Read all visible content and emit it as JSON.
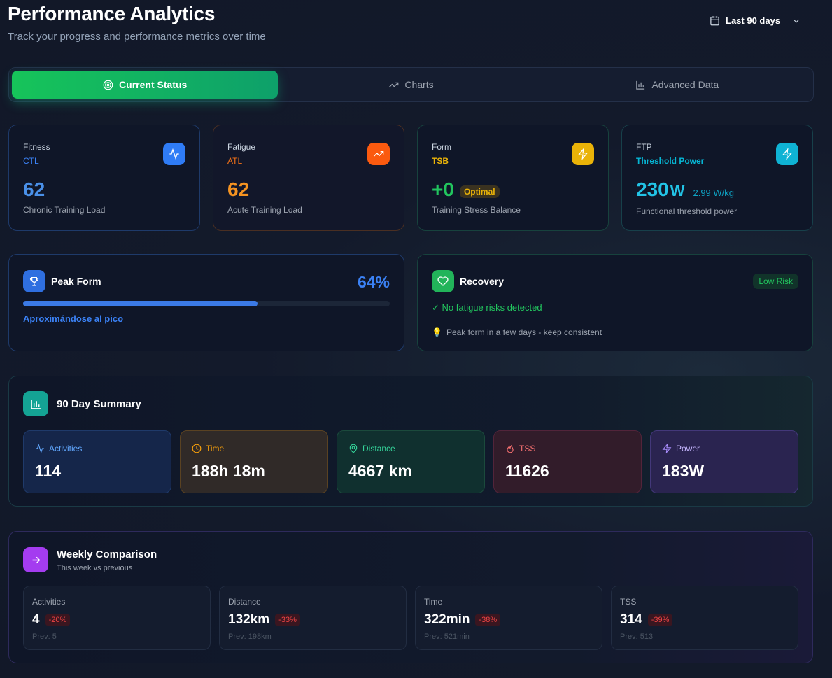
{
  "header": {
    "title": "Performance Analytics",
    "subtitle": "Track your progress and performance metrics over time",
    "date_range": "Last 90 days"
  },
  "tabs": [
    {
      "label": "Current Status",
      "active": true
    },
    {
      "label": "Charts",
      "active": false
    },
    {
      "label": "Advanced Data",
      "active": false
    }
  ],
  "metrics": [
    {
      "label": "Fitness",
      "sub": "CTL",
      "value": "62",
      "desc": "Chronic Training Load",
      "color": "#3b82f6",
      "icon": "activity-icon"
    },
    {
      "label": "Fatigue",
      "sub": "ATL",
      "value": "62",
      "desc": "Acute Training Load",
      "color": "#f97316",
      "icon": "trending-up-icon"
    },
    {
      "label": "Form",
      "sub": "TSB",
      "value": "+0",
      "badge": "Optimal",
      "desc": "Training Stress Balance",
      "color": "#eab308",
      "icon": "zap-icon"
    },
    {
      "label": "FTP",
      "sub": "Threshold Power",
      "value": "230",
      "unit": "W",
      "extra": "2.99 W/kg",
      "desc": "Functional threshold power",
      "color": "#06b6d4",
      "icon": "zap-icon"
    }
  ],
  "peak_form": {
    "title": "Peak Form",
    "percent_label": "64%",
    "progress": 64,
    "status": "Aproximándose al pico"
  },
  "recovery": {
    "title": "Recovery",
    "badge": "Low Risk",
    "status": "✓ No fatigue risks detected",
    "tip": "Peak form in a few days - keep consistent"
  },
  "summary": {
    "title": "90 Day Summary",
    "items": [
      {
        "label": "Activities",
        "value": "114",
        "icon": "activity-icon"
      },
      {
        "label": "Time",
        "value": "188h 18m",
        "icon": "clock-icon"
      },
      {
        "label": "Distance",
        "value": "4667 km",
        "icon": "map-pin-icon"
      },
      {
        "label": "TSS",
        "value": "11626",
        "icon": "flame-icon"
      },
      {
        "label": "Power",
        "value": "183W",
        "icon": "zap-icon"
      }
    ]
  },
  "weekly": {
    "title": "Weekly Comparison",
    "subtitle": "This week vs previous",
    "items": [
      {
        "label": "Activities",
        "value": "4",
        "change": "-20%",
        "prev": "Prev: 5"
      },
      {
        "label": "Distance",
        "value": "132km",
        "change": "-33%",
        "prev": "Prev: 198km"
      },
      {
        "label": "Time",
        "value": "322min",
        "change": "-38%",
        "prev": "Prev: 521min"
      },
      {
        "label": "TSS",
        "value": "314",
        "change": "-39%",
        "prev": "Prev: 513"
      }
    ]
  }
}
